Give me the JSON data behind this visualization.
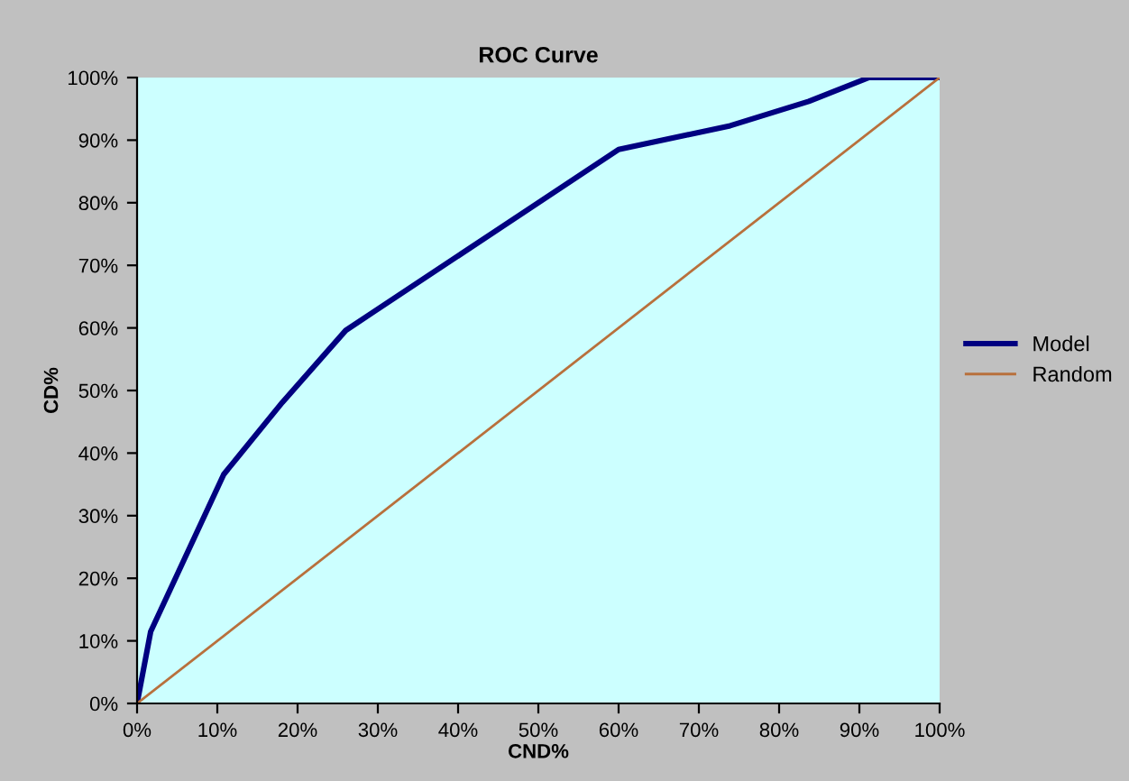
{
  "chart_data": {
    "type": "line",
    "title": "ROC Curve",
    "xlabel": "CND%",
    "ylabel": "CD%",
    "xlim": [
      0,
      100
    ],
    "ylim": [
      0,
      100
    ],
    "xticks": [
      {
        "value": 0,
        "label": "0%"
      },
      {
        "value": 10,
        "label": "10%"
      },
      {
        "value": 20,
        "label": "20%"
      },
      {
        "value": 30,
        "label": "30%"
      },
      {
        "value": 40,
        "label": "40%"
      },
      {
        "value": 50,
        "label": "50%"
      },
      {
        "value": 60,
        "label": "60%"
      },
      {
        "value": 70,
        "label": "70%"
      },
      {
        "value": 80,
        "label": "80%"
      },
      {
        "value": 90,
        "label": "90%"
      },
      {
        "value": 100,
        "label": "100%"
      }
    ],
    "yticks": [
      {
        "value": 0,
        "label": "0%"
      },
      {
        "value": 10,
        "label": "10%"
      },
      {
        "value": 20,
        "label": "20%"
      },
      {
        "value": 30,
        "label": "30%"
      },
      {
        "value": 40,
        "label": "40%"
      },
      {
        "value": 50,
        "label": "50%"
      },
      {
        "value": 60,
        "label": "60%"
      },
      {
        "value": 70,
        "label": "70%"
      },
      {
        "value": 80,
        "label": "80%"
      },
      {
        "value": 90,
        "label": "90%"
      },
      {
        "value": 100,
        "label": "100%"
      }
    ],
    "grid": false,
    "legend": "right",
    "marker": "none",
    "series": [
      {
        "name": "Model",
        "color": "#000080",
        "x": [
          0,
          1.7,
          10.8,
          18.1,
          26,
          29.4,
          60,
          73.9,
          83.7,
          91.2,
          100
        ],
        "values": [
          0,
          11.5,
          36.6,
          48.1,
          59.6,
          62.5,
          88.5,
          92.3,
          96.2,
          100,
          100
        ]
      },
      {
        "name": "Random",
        "color": "#b8703c",
        "x": [
          0,
          100
        ],
        "values": [
          0,
          100
        ]
      }
    ]
  }
}
